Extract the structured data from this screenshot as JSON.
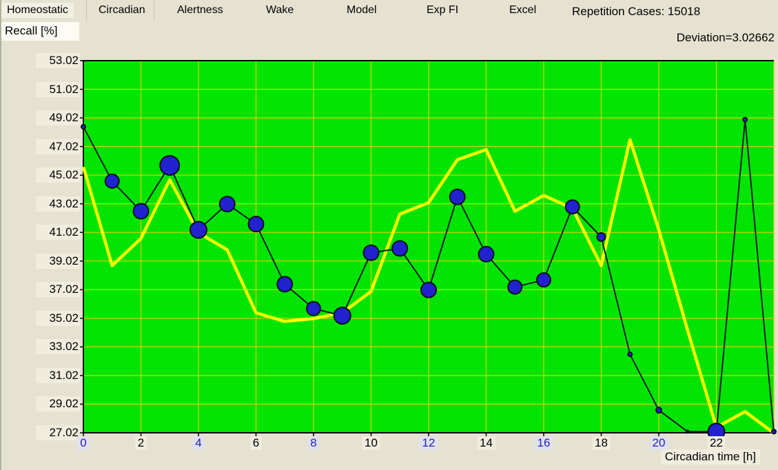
{
  "toolbar": {
    "tabs": [
      {
        "label": "Homeostatic",
        "selected": true
      },
      {
        "label": "Circadian",
        "selected": false
      },
      {
        "label": "Alertness",
        "selected": false
      },
      {
        "label": "Wake",
        "selected": false
      },
      {
        "label": "Model",
        "selected": false
      },
      {
        "label": "Exp FI",
        "selected": false
      },
      {
        "label": "Excel",
        "selected": false
      }
    ],
    "repetition_cases": "Repetition Cases: 15018",
    "deviation": "Deviation=3.02662"
  },
  "chart_data": {
    "type": "line",
    "title": "",
    "ylabel": "Recall [%]",
    "xlabel": "Circadian time [h]",
    "xlim": [
      0,
      24
    ],
    "ylim": [
      27.02,
      53.02
    ],
    "grid": true,
    "legend": "none",
    "plot_bg": "#00e400",
    "grid_color": "#d2d200",
    "y_ticks": [
      53.02,
      51.02,
      49.02,
      47.02,
      45.02,
      43.02,
      41.02,
      39.02,
      37.02,
      35.02,
      33.02,
      31.02,
      29.02,
      27.02
    ],
    "x_ticks": [
      0,
      2,
      4,
      6,
      8,
      10,
      12,
      14,
      16,
      18,
      20,
      22
    ],
    "x_ticks_blue": [
      0,
      4,
      8,
      12,
      16,
      20
    ],
    "x": [
      0,
      1,
      2,
      3,
      4,
      5,
      6,
      7,
      8,
      9,
      10,
      11,
      12,
      13,
      14,
      15,
      16,
      17,
      18,
      19,
      20,
      21,
      22,
      23,
      24
    ],
    "series": [
      {
        "name": "recall-measured-blue-markers",
        "line_color": "#0c1a26",
        "marker_color": "#2222ce",
        "marker_edge": "#00101e",
        "values": [
          48.4,
          44.6,
          42.5,
          45.7,
          41.2,
          43.0,
          41.6,
          37.4,
          35.7,
          35.2,
          39.6,
          39.9,
          37.0,
          43.5,
          39.5,
          37.2,
          37.7,
          42.8,
          40.7,
          32.5,
          28.6,
          27.1,
          27.1,
          48.9,
          27.1
        ],
        "marker_radii": [
          3,
          10,
          11,
          14,
          12,
          11,
          11,
          11,
          10,
          12,
          11,
          11,
          11,
          11,
          11,
          10,
          10,
          10,
          6,
          3,
          4,
          2,
          12,
          3,
          3
        ]
      },
      {
        "name": "model-prediction-yellow",
        "line_color": "#ffff00",
        "values": [
          45.6,
          38.7,
          40.6,
          44.7,
          41.0,
          39.8,
          35.4,
          34.8,
          35.0,
          35.4,
          36.9,
          42.3,
          43.1,
          46.1,
          46.8,
          42.5,
          43.6,
          42.7,
          38.7,
          47.5,
          41.2,
          34.2,
          27.4,
          28.5,
          27.0
        ]
      }
    ]
  },
  "colors": {
    "window_bg": "#e6e2d2",
    "tick_label_bg": "#f0eddf",
    "blue_tick_label_bg": "#e1e1ee",
    "blue_tick_text": "#2222bb",
    "selected_tab_bg": "#f2efe3"
  }
}
